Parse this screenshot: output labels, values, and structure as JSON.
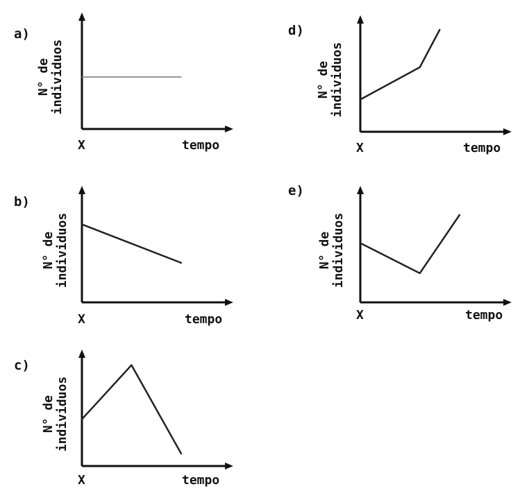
{
  "colors": {
    "ink": "#111111",
    "line": "#222222",
    "background": "#ffffff"
  },
  "chart_data": [
    {
      "type": "line",
      "panel": "a)",
      "ylabel_line1": "N° de",
      "ylabel_line2": "individuos",
      "xlabel": "tempo",
      "origin_label": "X",
      "x": [
        0,
        10
      ],
      "y": [
        5,
        5
      ],
      "xlim": [
        0,
        14
      ],
      "ylim": [
        0,
        10
      ]
    },
    {
      "type": "line",
      "panel": "b)",
      "ylabel_line1": "N° de",
      "ylabel_line2": "individuos",
      "xlabel": "tempo",
      "origin_label": "X",
      "x": [
        0,
        10
      ],
      "y": [
        7.5,
        3.8
      ],
      "xlim": [
        0,
        14
      ],
      "ylim": [
        0,
        10
      ]
    },
    {
      "type": "line",
      "panel": "c)",
      "ylabel_line1": "N° de",
      "ylabel_line2": "individuos",
      "xlabel": "tempo",
      "origin_label": "X",
      "x": [
        0,
        5,
        10
      ],
      "y": [
        4.5,
        9.7,
        1.2
      ],
      "xlim": [
        0,
        14
      ],
      "ylim": [
        0,
        10
      ]
    },
    {
      "type": "line",
      "panel": "d)",
      "ylabel_line1": "N° de",
      "ylabel_line2": "individuos",
      "xlabel": "tempo",
      "origin_label": "X",
      "x": [
        0,
        6,
        8
      ],
      "y": [
        3.1,
        6.2,
        9.8
      ],
      "xlim": [
        0,
        14
      ],
      "ylim": [
        0,
        10
      ]
    },
    {
      "type": "line",
      "panel": "e)",
      "ylabel_line1": "N° de",
      "ylabel_line2": "individuos",
      "xlabel": "tempo",
      "origin_label": "X",
      "x": [
        0,
        6,
        10
      ],
      "y": [
        5.7,
        2.8,
        8.4
      ],
      "xlim": [
        0,
        14
      ],
      "ylim": [
        0,
        10
      ]
    }
  ]
}
